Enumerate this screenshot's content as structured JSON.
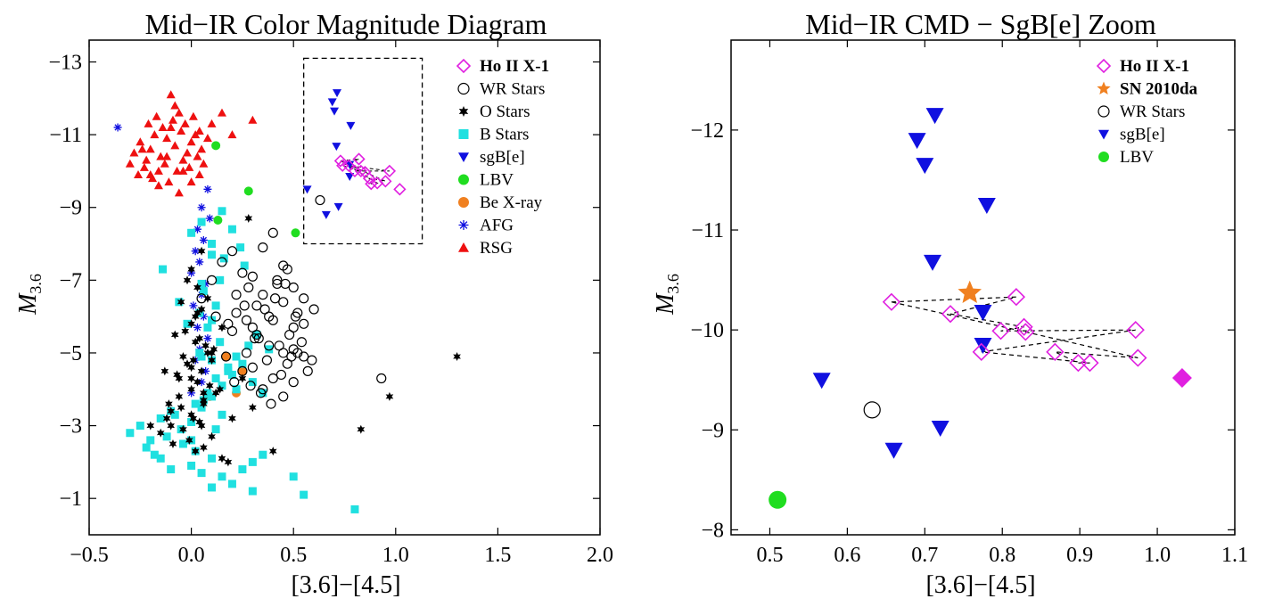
{
  "chart_data": [
    {
      "type": "scatter",
      "title": "Mid−IR Color Magnitude Diagram",
      "xlabel": "[3.6]−[4.5]",
      "ylabel": "M3.6",
      "ylabel_main": "M",
      "ylabel_sub": "3.6",
      "xlim": [
        -0.5,
        2.0
      ],
      "ylim": [
        0,
        -13.6
      ],
      "y_inverted": true,
      "xticks": [
        -0.5,
        0.0,
        0.5,
        1.0,
        1.5,
        2.0
      ],
      "xtick_labels": [
        "−0.5",
        "0.0",
        "0.5",
        "1.0",
        "1.5",
        "2.0"
      ],
      "yticks": [
        -13,
        -11,
        -9,
        -7,
        -5,
        -3,
        -1
      ],
      "ytick_labels": [
        "−13",
        "−11",
        "−9",
        "−7",
        "−5",
        "−3",
        "−1"
      ],
      "grid": false,
      "legend_position": "top-right",
      "zoom_box": {
        "x": [
          0.55,
          1.13
        ],
        "y": [
          -8.0,
          -13.1
        ]
      },
      "series": [
        {
          "name": "Ho II X-1",
          "marker": "diamond-open",
          "color": "#e020e0",
          "bold": true,
          "x": [
            0.73,
            0.74,
            0.77,
            0.8,
            0.83,
            0.85,
            0.87,
            0.88,
            0.91,
            0.95,
            0.97,
            1.02,
            0.82
          ],
          "y": [
            -10.28,
            -10.15,
            -10.15,
            -10.0,
            -10.0,
            -9.97,
            -9.8,
            -9.65,
            -9.67,
            -9.72,
            -10.0,
            -9.5,
            -10.33
          ]
        },
        {
          "name": "WR Stars",
          "marker": "circle-open",
          "color": "#000000",
          "x": [
            0.05,
            0.1,
            0.15,
            0.2,
            0.25,
            0.3,
            0.35,
            0.4,
            0.45,
            0.5,
            0.55,
            0.6,
            0.12,
            0.22,
            0.32,
            0.42,
            0.52,
            0.28,
            0.38,
            0.48,
            0.18,
            0.33,
            0.43,
            0.27,
            0.37,
            0.47,
            0.57,
            0.3,
            0.4,
            0.5,
            0.35,
            0.45,
            0.25,
            0.2,
            0.3,
            0.4,
            0.5,
            0.55,
            0.45,
            0.35,
            0.42,
            0.47,
            0.52,
            0.38,
            0.32,
            0.27,
            0.22,
            0.17,
            0.29,
            0.34,
            0.39,
            0.44,
            0.49,
            0.54,
            0.59,
            0.36,
            0.41,
            0.46,
            0.51,
            0.31,
            0.26,
            0.21,
            0.93,
            0.63,
            0.45,
            0.5,
            0.55
          ],
          "y": [
            -6.5,
            -7.0,
            -7.5,
            -7.8,
            -7.2,
            -7.1,
            -7.9,
            -8.3,
            -7.4,
            -6.8,
            -6.5,
            -6.2,
            -6.0,
            -6.6,
            -6.3,
            -6.9,
            -6.1,
            -6.8,
            -6.0,
            -5.5,
            -5.8,
            -5.4,
            -5.2,
            -5.0,
            -4.8,
            -4.7,
            -4.5,
            -4.6,
            -4.3,
            -4.2,
            -4.0,
            -3.8,
            -4.5,
            -5.6,
            -5.7,
            -5.9,
            -5.7,
            -5.8,
            -6.4,
            -6.6,
            -7.0,
            -7.3,
            -5.0,
            -5.2,
            -5.5,
            -5.9,
            -6.1,
            -4.9,
            -4.1,
            -3.9,
            -3.6,
            -4.4,
            -4.9,
            -5.3,
            -4.8,
            -6.2,
            -6.5,
            -6.9,
            -6.0,
            -5.4,
            -6.3,
            -4.2,
            -4.3,
            -9.2,
            -5.0,
            -5.1,
            -4.9
          ]
        },
        {
          "name": "O Stars",
          "marker": "star",
          "color": "#000000",
          "x": [
            -0.1,
            -0.05,
            0.0,
            0.05,
            0.1,
            -0.08,
            0.02,
            0.08,
            -0.02,
            0.03,
            -0.06,
            0.06,
            0.0,
            0.04,
            -0.04,
            0.1,
            -0.1,
            0.01,
            0.07,
            -0.07,
            0.12,
            -0.12,
            0.0,
            0.05,
            -0.03,
            0.09,
            -0.09,
            0.02,
            0.15,
            -0.15,
            0.0,
            0.04,
            -0.04,
            0.06,
            -0.06,
            0.11,
            -0.11,
            0.03,
            0.08,
            -0.02,
            0.01,
            -0.01,
            0.05,
            0.14,
            -0.13,
            0.18,
            0.2,
            0.25,
            0.28,
            0.0,
            0.05,
            0.02,
            0.1,
            -0.05,
            0.06,
            0.3,
            0.4,
            0.83,
            0.97,
            1.3,
            0.15,
            -0.2,
            0.0,
            0.03,
            0.06
          ],
          "y": [
            -3.0,
            -3.5,
            -4.0,
            -4.5,
            -5.0,
            -5.5,
            -6.0,
            -6.5,
            -7.0,
            -4.2,
            -3.8,
            -3.6,
            -3.3,
            -3.1,
            -2.9,
            -2.7,
            -3.4,
            -4.8,
            -5.2,
            -4.4,
            -3.9,
            -3.2,
            -5.8,
            -6.2,
            -5.6,
            -4.1,
            -2.5,
            -2.3,
            -2.1,
            -2.8,
            -4.6,
            -5.4,
            -4.9,
            -3.7,
            -4.3,
            -5.1,
            -3.6,
            -6.8,
            -5.0,
            -4.7,
            -3.2,
            -2.6,
            -3.0,
            -4.0,
            -4.5,
            -2.0,
            -3.2,
            -4.3,
            -8.7,
            -7.3,
            -7.8,
            -5.3,
            -4.8,
            -6.4,
            -2.4,
            -3.5,
            -2.3,
            -2.9,
            -3.8,
            -4.9,
            -5.7,
            -3.0,
            -4.3,
            -6.1,
            -3.9
          ]
        },
        {
          "name": "B Stars",
          "marker": "square",
          "color": "#20e0e0",
          "x": [
            -0.3,
            -0.25,
            -0.2,
            -0.15,
            -0.1,
            -0.05,
            0.0,
            0.05,
            0.1,
            0.15,
            0.2,
            0.25,
            0.3,
            0.35,
            -0.22,
            -0.18,
            -0.12,
            -0.08,
            0.02,
            0.08,
            0.12,
            0.18,
            0.22,
            0.28,
            0.32,
            0.38,
            -0.02,
            0.04,
            -0.06,
            0.06,
            0.14,
            -0.14,
            0.16,
            0.24,
            0.26,
            0.1,
            0.0,
            0.05,
            0.15,
            0.2,
            0.1,
            0.05,
            0.12,
            0.08,
            0.14,
            0.1,
            0.18,
            0.04,
            0.22,
            0.06,
            0.12,
            -0.04,
            0.02,
            0.1,
            0.0,
            0.15,
            0.25,
            0.3,
            0.35,
            0.2,
            0.1,
            0.05,
            0.0,
            -0.1,
            0.3,
            0.5,
            0.55,
            0.8,
            0.15,
            0.05,
            -0.15,
            0.1
          ],
          "y": [
            -2.8,
            -3.0,
            -2.6,
            -3.2,
            -3.4,
            -2.9,
            -3.1,
            -3.5,
            -3.8,
            -4.1,
            -4.4,
            -4.7,
            -4.2,
            -3.9,
            -2.4,
            -2.2,
            -2.7,
            -3.3,
            -3.6,
            -3.9,
            -4.3,
            -4.6,
            -4.9,
            -5.2,
            -5.5,
            -5.1,
            -5.8,
            -6.1,
            -6.4,
            -6.7,
            -7.0,
            -7.3,
            -7.6,
            -7.9,
            -7.4,
            -8.0,
            -8.3,
            -8.6,
            -8.9,
            -8.4,
            -7.7,
            -6.9,
            -6.3,
            -5.7,
            -5.3,
            -4.8,
            -4.5,
            -5.0,
            -4.0,
            -3.7,
            -2.9,
            -2.5,
            -2.3,
            -2.1,
            -1.9,
            -1.6,
            -1.8,
            -2.0,
            -2.2,
            -1.4,
            -1.3,
            -1.7,
            -2.6,
            -1.8,
            -1.2,
            -1.6,
            -1.1,
            -0.7,
            -3.3,
            -4.9,
            -2.1,
            -5.9
          ]
        },
        {
          "name": "sgB[e]",
          "marker": "triangle-down",
          "color": "#1010e0",
          "x": [
            0.567,
            0.66,
            0.69,
            0.7,
            0.71,
            0.713,
            0.72,
            0.775,
            0.775,
            0.78
          ],
          "y": [
            -9.5,
            -8.8,
            -11.9,
            -11.65,
            -10.68,
            -12.15,
            -9.02,
            -10.18,
            -9.85,
            -11.25
          ]
        },
        {
          "name": "LBV",
          "marker": "circle",
          "color": "#20dd20",
          "x": [
            0.51,
            0.12,
            0.13,
            0.28
          ],
          "y": [
            -8.3,
            -10.7,
            -8.65,
            -9.45
          ]
        },
        {
          "name": "Be X-ray",
          "marker": "circle",
          "color": "#f08020",
          "x": [
            0.09,
            0.17,
            0.22,
            0.25
          ],
          "y": [
            -3.8,
            -4.9,
            -3.9,
            -4.5
          ]
        },
        {
          "name": "AFG",
          "marker": "asterisk",
          "color": "#1010e0",
          "x": [
            -0.36,
            0.08,
            0.05,
            0.09,
            0.03,
            0.06,
            0.02,
            0.04,
            0.0,
            0.07,
            0.05,
            0.01,
            0.06,
            0.03,
            0.08,
            0.04,
            0.02,
            0.07,
            0.05,
            0.0
          ],
          "y": [
            -11.2,
            -9.5,
            -9.0,
            -8.7,
            -8.4,
            -8.1,
            -7.8,
            -7.5,
            -7.2,
            -6.9,
            -6.6,
            -6.3,
            -6.0,
            -5.7,
            -5.4,
            -5.1,
            -4.8,
            -4.5,
            -4.2,
            -3.9
          ]
        },
        {
          "name": "RSG",
          "marker": "triangle-up",
          "color": "#ee1010",
          "x": [
            -0.3,
            -0.28,
            -0.25,
            -0.22,
            -0.2,
            -0.18,
            -0.15,
            -0.12,
            -0.1,
            -0.08,
            -0.05,
            -0.02,
            0.0,
            0.02,
            0.05,
            0.08,
            -0.26,
            -0.23,
            -0.19,
            -0.16,
            -0.13,
            -0.11,
            -0.07,
            -0.04,
            -0.01,
            0.03,
            0.06,
            -0.21,
            -0.17,
            -0.14,
            -0.09,
            -0.06,
            -0.03,
            0.01,
            0.04,
            -0.24,
            -0.2,
            -0.16,
            -0.12,
            -0.08,
            -0.04,
            0.0,
            0.04,
            -0.1,
            0.1,
            0.15,
            0.2,
            0.3,
            -0.06
          ],
          "y": [
            -10.2,
            -10.5,
            -10.8,
            -10.3,
            -10.6,
            -11.0,
            -10.4,
            -10.9,
            -11.2,
            -10.7,
            -11.1,
            -10.5,
            -10.8,
            -11.0,
            -10.6,
            -10.9,
            -9.9,
            -10.1,
            -9.8,
            -10.0,
            -10.2,
            -9.7,
            -10.0,
            -10.3,
            -10.1,
            -10.4,
            -10.2,
            -11.3,
            -11.5,
            -11.2,
            -11.4,
            -11.6,
            -11.3,
            -11.5,
            -11.1,
            -10.6,
            -9.9,
            -9.6,
            -10.4,
            -11.8,
            -10.0,
            -9.7,
            -9.9,
            -12.1,
            -11.3,
            -11.6,
            -11.0,
            -11.4,
            -9.4
          ]
        }
      ]
    },
    {
      "type": "scatter",
      "title": "Mid−IR CMD − SgB[e] Zoom",
      "xlabel": "[3.6]−[4.5]",
      "ylabel": "M3.6",
      "ylabel_main": "M",
      "ylabel_sub": "3.6",
      "xlim": [
        0.45,
        1.1
      ],
      "ylim": [
        -7.95,
        -12.9
      ],
      "y_inverted": true,
      "xticks": [
        0.5,
        0.6,
        0.7,
        0.8,
        0.9,
        1.0,
        1.1
      ],
      "xtick_labels": [
        "0.5",
        "0.6",
        "0.7",
        "0.8",
        "0.9",
        "1.0",
        "1.1"
      ],
      "yticks": [
        -12,
        -11,
        -10,
        -9,
        -8
      ],
      "ytick_labels": [
        "−12",
        "−11",
        "−10",
        "−9",
        "−8"
      ],
      "grid": false,
      "legend_position": "top-right",
      "series": [
        {
          "name": "Ho II X-1",
          "marker": "diamond-open",
          "color": "#e020e0",
          "bold": true,
          "x": [
            0.657,
            0.733,
            0.818,
            0.798,
            0.828,
            0.83,
            0.972,
            0.975,
            0.773,
            0.868,
            0.898,
            0.913,
            1.032
          ],
          "y": [
            -10.28,
            -10.16,
            -10.33,
            -9.99,
            -10.03,
            -9.98,
            -10.0,
            -9.72,
            -9.78,
            -9.78,
            -9.67,
            -9.67,
            -9.52
          ]
        },
        {
          "name": "SN 2010da",
          "marker": "star5",
          "color": "#f08020",
          "bold": true,
          "x": [
            0.758
          ],
          "y": [
            -10.37
          ]
        },
        {
          "name": "WR Stars",
          "marker": "circle-open",
          "color": "#000000",
          "x": [
            0.632
          ],
          "y": [
            -9.2
          ]
        },
        {
          "name": "sgB[e]",
          "marker": "triangle-down",
          "color": "#1010e0",
          "x": [
            0.567,
            0.66,
            0.69,
            0.7,
            0.71,
            0.713,
            0.72,
            0.775,
            0.775,
            0.78
          ],
          "y": [
            -9.5,
            -8.8,
            -11.9,
            -11.65,
            -10.68,
            -12.15,
            -9.02,
            -10.18,
            -9.85,
            -11.25
          ]
        },
        {
          "name": "LBV",
          "marker": "circle",
          "color": "#20dd20",
          "x": [
            0.51
          ],
          "y": [
            -8.3
          ]
        }
      ],
      "extra_marks": [
        {
          "marker": "diamond-filled",
          "color": "#e020e0",
          "x": 1.032,
          "y": -9.52
        }
      ],
      "connector_path": {
        "color": "#000000",
        "x": [
          0.657,
          0.818,
          0.733,
          0.828,
          0.798,
          0.972,
          0.773,
          0.913,
          0.898,
          0.868,
          0.975,
          0.83,
          0.657
        ],
        "y": [
          -10.28,
          -10.33,
          -10.16,
          -10.03,
          -9.99,
          -10.0,
          -9.78,
          -9.67,
          -9.67,
          -9.78,
          -9.72,
          -9.98,
          -10.28
        ]
      }
    }
  ]
}
